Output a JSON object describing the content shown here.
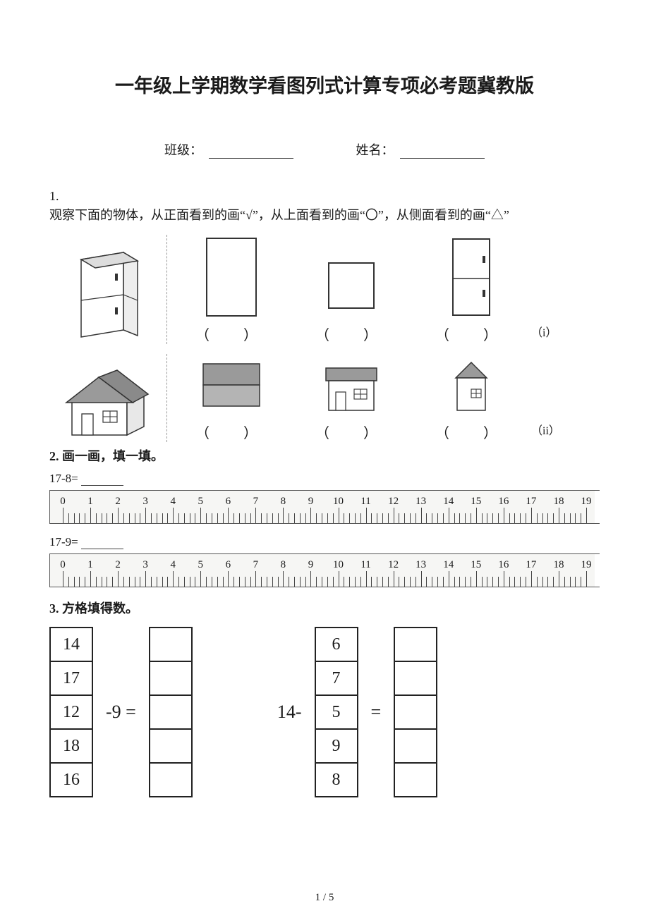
{
  "title": "一年级上学期数学看图列式计算专项必考题冀教版",
  "fields": {
    "class_label": "班级：",
    "name_label": "姓名："
  },
  "q1": {
    "num": "1.",
    "text": "观察下面的物体，从正面看到的画“√”，从上面看到的画“〇”，从侧面看到的画“△”",
    "row1_label": "（i）",
    "row2_label": "（ii）",
    "paren": "（　）"
  },
  "q2": {
    "head": "2. 画一画，填一填。",
    "eq1": "17-8=",
    "eq2": "17-9=",
    "ruler": {
      "min": 0,
      "max": 19,
      "labels": [
        "0",
        "1",
        "2",
        "3",
        "4",
        "5",
        "6",
        "7",
        "8",
        "9",
        "10",
        "11",
        "12",
        "13",
        "14",
        "15",
        "16",
        "17",
        "18",
        "19"
      ],
      "bg": "#f6f6f4",
      "border": "#555555",
      "tick_color": "#444444",
      "label_fontsize": 15
    }
  },
  "q3": {
    "head": "3. 方格填得数。",
    "left_values": [
      "14",
      "17",
      "12",
      "18",
      "16"
    ],
    "left_op": "-9  =",
    "right_prefix": "14-",
    "right_values": [
      "6",
      "7",
      "5",
      "9",
      "8"
    ],
    "right_op": "="
  },
  "page_num": "1 / 5",
  "colors": {
    "text": "#1a1a1a",
    "box_border": "#222222",
    "house_roof": "#999999"
  }
}
